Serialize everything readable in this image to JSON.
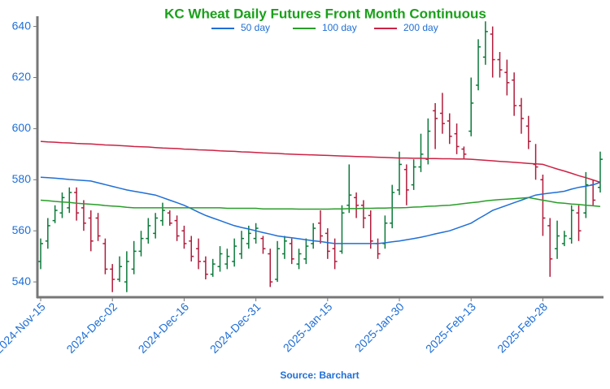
{
  "chart_data": {
    "type": "ohlc",
    "title": "KC Wheat Daily Futures Front Month Continuous",
    "source": "Source: Barchart",
    "categories": [
      "2024-Nov-15",
      null,
      null,
      null,
      null,
      null,
      null,
      null,
      null,
      null,
      "2024-Dec-02",
      null,
      null,
      null,
      null,
      null,
      null,
      null,
      null,
      null,
      "2024-Dec-16",
      null,
      null,
      null,
      null,
      null,
      null,
      null,
      null,
      null,
      "2024-Dec-31",
      null,
      null,
      null,
      null,
      null,
      null,
      null,
      null,
      null,
      "2025-Jan-15",
      null,
      null,
      null,
      null,
      null,
      null,
      null,
      null,
      null,
      "2025-Jan-30",
      null,
      null,
      null,
      null,
      null,
      null,
      null,
      null,
      null,
      "2025-Feb-13",
      null,
      null,
      null,
      null,
      null,
      null,
      null,
      null,
      null,
      "2025-Feb-28",
      null,
      null,
      null,
      null,
      null,
      null,
      null,
      null
    ],
    "open": [
      548,
      556,
      564,
      567,
      569,
      575,
      569,
      565,
      565,
      555,
      545,
      541,
      540,
      545,
      552,
      557,
      559,
      564,
      567,
      564,
      560,
      556,
      553,
      548,
      543,
      546,
      547,
      548,
      551,
      555,
      557,
      557,
      551,
      541,
      551,
      555,
      547,
      549,
      555,
      563,
      559,
      553,
      552,
      570,
      573,
      570,
      566,
      555,
      555,
      563,
      576,
      584,
      578,
      585,
      588,
      607,
      606,
      603,
      598,
      592,
      599,
      617,
      628,
      637,
      627,
      622,
      619,
      609,
      601,
      586,
      580,
      562,
      553,
      555,
      557,
      567,
      567,
      578,
      577
    ],
    "high": [
      557,
      565,
      570,
      575,
      577,
      577,
      572,
      568,
      567,
      557,
      547,
      550,
      552,
      556,
      560,
      565,
      567,
      571,
      568,
      566,
      562,
      558,
      557,
      550,
      549,
      554,
      553,
      557,
      560,
      562,
      563,
      558,
      553,
      556,
      558,
      557,
      553,
      557,
      563,
      568,
      561,
      557,
      570,
      586,
      575,
      572,
      568,
      557,
      566,
      578,
      591,
      586,
      588,
      598,
      604,
      610,
      614,
      606,
      602,
      593,
      620,
      635,
      642,
      640,
      630,
      627,
      622,
      612,
      605,
      594,
      582,
      565,
      564,
      560,
      570,
      570,
      583,
      580,
      591
    ],
    "low": [
      545,
      553,
      563,
      565,
      567,
      564,
      560,
      552,
      556,
      543,
      536,
      540,
      536,
      543,
      550,
      555,
      557,
      562,
      562,
      556,
      553,
      548,
      545,
      541,
      542,
      544,
      545,
      546,
      549,
      553,
      555,
      551,
      538,
      540,
      549,
      547,
      545,
      547,
      553,
      555,
      549,
      545,
      551,
      567,
      565,
      561,
      553,
      549,
      553,
      561,
      574,
      570,
      576,
      583,
      586,
      592,
      598,
      594,
      590,
      588,
      597,
      615,
      625,
      620,
      620,
      613,
      605,
      598,
      592,
      580,
      558,
      542,
      549,
      554,
      555,
      556,
      565,
      570,
      575
    ],
    "close": [
      555,
      562,
      568,
      573,
      575,
      567,
      563,
      556,
      558,
      545,
      541,
      546,
      548,
      552,
      557,
      562,
      565,
      568,
      563,
      558,
      555,
      550,
      548,
      543,
      547,
      551,
      550,
      554,
      557,
      559,
      561,
      553,
      540,
      553,
      556,
      549,
      551,
      554,
      561,
      558,
      552,
      548,
      567,
      574,
      570,
      565,
      556,
      551,
      563,
      575,
      586,
      576,
      585,
      590,
      599,
      604,
      602,
      597,
      593,
      590,
      610,
      632,
      638,
      627,
      623,
      618,
      609,
      604,
      595,
      585,
      565,
      549,
      558,
      558,
      568,
      560,
      578,
      572,
      588
    ],
    "up_color": "#0b7a3a",
    "down_color": "#b01c3c",
    "series": [
      {
        "name": "50 day",
        "color": "#1f6fd6",
        "values": [
          581,
          580.8,
          580.6,
          580.4,
          580.1,
          579.9,
          579.7,
          579.5,
          578.8,
          578.1,
          577.4,
          576.7,
          576,
          575.5,
          575,
          574.5,
          574,
          573,
          572,
          571,
          570,
          568.7,
          567.3,
          566,
          565,
          564,
          563,
          562,
          561.3,
          560.7,
          560,
          559.3,
          558.7,
          558,
          557.6,
          557.3,
          556.9,
          556.5,
          556.1,
          555.8,
          555.4,
          555,
          555,
          555,
          555,
          555,
          555,
          555,
          555.3,
          555.7,
          556,
          556.5,
          557,
          557.5,
          558.1,
          558.8,
          559.4,
          560,
          561,
          562,
          563,
          564.7,
          566.3,
          568,
          569,
          570,
          571,
          572,
          573,
          574,
          574.4,
          574.8,
          575.1,
          575.5,
          576.3,
          577,
          577.5,
          578,
          579
        ]
      },
      {
        "name": "100 day",
        "color": "#2a9d2a",
        "values": [
          572,
          571.8,
          571.5,
          571.3,
          571.1,
          570.8,
          570.6,
          570.4,
          570.2,
          569.9,
          569.7,
          569.5,
          569.2,
          569,
          569,
          569,
          569,
          569,
          569,
          569,
          569,
          569,
          569,
          569,
          569,
          569,
          568.8,
          568.8,
          568.8,
          568.8,
          568.8,
          568.6,
          568.6,
          568.6,
          568.6,
          568.6,
          568.5,
          568.5,
          568.5,
          568.5,
          568.5,
          568.6,
          568.6,
          568.7,
          568.7,
          568.8,
          568.8,
          568.9,
          568.9,
          569,
          569,
          569.1,
          569.3,
          569.4,
          569.6,
          569.7,
          569.9,
          570,
          570.3,
          570.7,
          571,
          571.3,
          571.7,
          572,
          572.2,
          572.4,
          572.6,
          572.8,
          573,
          572.5,
          572,
          571.5,
          571,
          570.8,
          570.5,
          570.3,
          570,
          569.8,
          569.5
        ]
      },
      {
        "name": "200 day",
        "color": "#cc2244",
        "values": [
          595,
          594.8,
          594.7,
          594.5,
          594.4,
          594.2,
          594.1,
          594,
          593.8,
          593.6,
          593.5,
          593.4,
          593.2,
          593,
          592.9,
          592.8,
          592.6,
          592.4,
          592.3,
          592.2,
          592,
          591.9,
          591.7,
          591.6,
          591.5,
          591.3,
          591.2,
          591.1,
          590.9,
          590.8,
          590.7,
          590.5,
          590.4,
          590.3,
          590.1,
          590,
          589.9,
          589.8,
          589.7,
          589.6,
          589.5,
          589.4,
          589.3,
          589.2,
          589.1,
          589,
          588.9,
          588.8,
          588.7,
          588.6,
          588.5,
          588.5,
          588.4,
          588.4,
          588.3,
          588.3,
          588.2,
          588.2,
          588.1,
          588.1,
          588,
          587.8,
          587.6,
          587.4,
          587.2,
          587,
          586.8,
          586.6,
          586.4,
          586.2,
          586,
          585.1,
          584.2,
          583.4,
          582.5,
          581.6,
          580.8,
          579.9,
          579
        ]
      }
    ],
    "ylim": [
      534,
      644
    ],
    "yticks": [
      540,
      560,
      580,
      600,
      620,
      640
    ]
  }
}
